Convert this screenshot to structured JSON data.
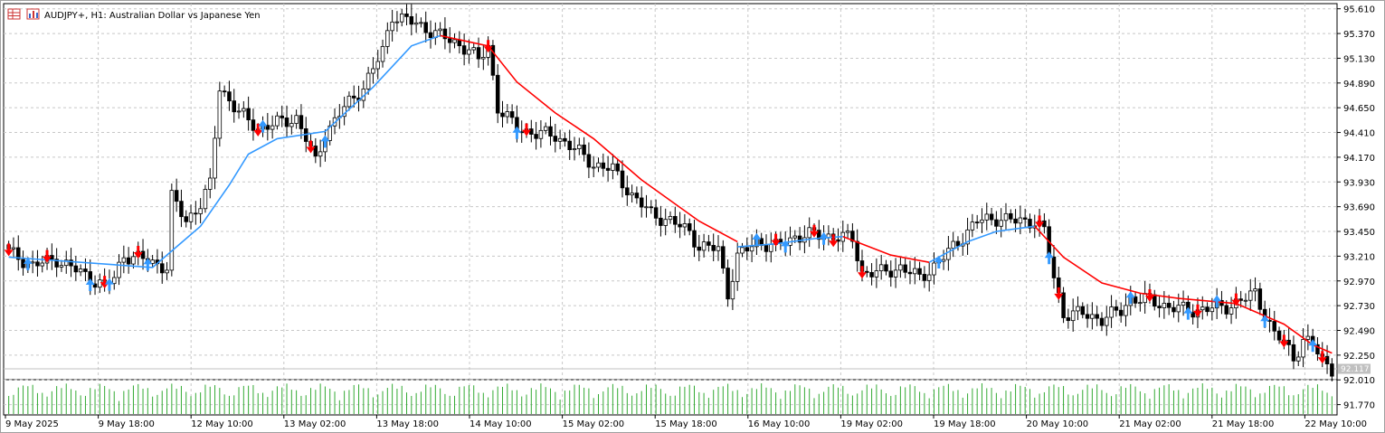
{
  "header": {
    "icons": [
      "chart-grid-icon",
      "bar-chart-icon"
    ],
    "symbol_line": "AUDJPY+, H1:  Australian Dollar vs Japanese Yen"
  },
  "colors": {
    "candle": "#000000",
    "ma_up": "#3399ff",
    "ma_down": "#ff0000",
    "arrow_up": "#3399ff",
    "arrow_down": "#ff0000",
    "volume": "#33aa33",
    "grid": "#c8c8c8",
    "price_tag": "#c0c0c0"
  },
  "chart_data": {
    "type": "candlestick",
    "symbol": "AUDJPY+",
    "timeframe": "H1",
    "description": "Australian Dollar vs Japanese Yen",
    "y_ticks": [
      "95.610",
      "95.370",
      "95.130",
      "94.890",
      "94.650",
      "94.410",
      "94.170",
      "93.930",
      "93.690",
      "93.450",
      "93.210",
      "92.970",
      "92.730",
      "92.490",
      "92.250",
      "92.010",
      "91.770"
    ],
    "ylim": [
      91.67,
      95.66
    ],
    "x_ticks": [
      "9 May 2025",
      "9 May 18:00",
      "12 May 10:00",
      "13 May 02:00",
      "13 May 18:00",
      "14 May 10:00",
      "15 May 02:00",
      "15 May 18:00",
      "16 May 10:00",
      "19 May 02:00",
      "19 May 18:00",
      "20 May 10:00",
      "21 May 02:00",
      "21 May 18:00",
      "22 May 10:00"
    ],
    "current_price": "92.117",
    "close_path": [
      [
        0,
        93.25
      ],
      [
        5,
        93.12
      ],
      [
        10,
        93.18
      ],
      [
        15,
        93.05
      ],
      [
        20,
        92.92
      ],
      [
        22,
        93.0
      ],
      [
        24,
        93.22
      ],
      [
        28,
        93.18
      ],
      [
        33,
        93.1
      ],
      [
        34,
        93.78
      ],
      [
        37,
        93.55
      ],
      [
        40,
        93.72
      ],
      [
        42,
        93.9
      ],
      [
        44,
        94.85
      ],
      [
        48,
        94.6
      ],
      [
        52,
        94.45
      ],
      [
        56,
        94.5
      ],
      [
        60,
        94.55
      ],
      [
        62,
        94.35
      ],
      [
        64,
        94.12
      ],
      [
        66,
        94.4
      ],
      [
        70,
        94.65
      ],
      [
        74,
        94.85
      ],
      [
        78,
        95.2
      ],
      [
        80,
        95.55
      ],
      [
        84,
        95.48
      ],
      [
        88,
        95.4
      ],
      [
        92,
        95.3
      ],
      [
        96,
        95.22
      ],
      [
        98,
        95.1
      ],
      [
        100,
        95.25
      ],
      [
        102,
        94.65
      ],
      [
        106,
        94.45
      ],
      [
        110,
        94.4
      ],
      [
        114,
        94.38
      ],
      [
        118,
        94.25
      ],
      [
        122,
        94.1
      ],
      [
        126,
        94.05
      ],
      [
        130,
        93.8
      ],
      [
        134,
        93.62
      ],
      [
        138,
        93.55
      ],
      [
        142,
        93.45
      ],
      [
        144,
        93.3
      ],
      [
        148,
        93.28
      ],
      [
        150,
        92.85
      ],
      [
        152,
        93.2
      ],
      [
        156,
        93.35
      ],
      [
        160,
        93.3
      ],
      [
        164,
        93.4
      ],
      [
        168,
        93.42
      ],
      [
        172,
        93.4
      ],
      [
        176,
        93.38
      ],
      [
        178,
        93.05
      ],
      [
        182,
        93.05
      ],
      [
        186,
        93.1
      ],
      [
        190,
        93.0
      ],
      [
        194,
        93.15
      ],
      [
        198,
        93.35
      ],
      [
        202,
        93.55
      ],
      [
        206,
        93.58
      ],
      [
        210,
        93.55
      ],
      [
        214,
        93.55
      ],
      [
        216,
        93.45
      ],
      [
        218,
        93.0
      ],
      [
        220,
        92.65
      ],
      [
        224,
        92.65
      ],
      [
        228,
        92.6
      ],
      [
        232,
        92.68
      ],
      [
        234,
        92.8
      ],
      [
        238,
        92.78
      ],
      [
        242,
        92.72
      ],
      [
        246,
        92.68
      ],
      [
        250,
        92.7
      ],
      [
        254,
        92.72
      ],
      [
        258,
        92.8
      ],
      [
        260,
        92.85
      ],
      [
        262,
        92.65
      ],
      [
        264,
        92.45
      ],
      [
        266,
        92.38
      ],
      [
        268,
        92.22
      ],
      [
        270,
        92.4
      ],
      [
        272,
        92.35
      ],
      [
        274,
        92.2
      ],
      [
        276,
        92.12
      ]
    ],
    "ma_segments": [
      {
        "trend": "up",
        "points": [
          [
            0,
            93.2
          ],
          [
            30,
            93.1
          ],
          [
            40,
            93.5
          ],
          [
            46,
            93.9
          ],
          [
            50,
            94.2
          ],
          [
            56,
            94.35
          ],
          [
            66,
            94.42
          ],
          [
            76,
            94.85
          ],
          [
            84,
            95.25
          ],
          [
            90,
            95.35
          ]
        ]
      },
      {
        "trend": "down",
        "points": [
          [
            90,
            95.35
          ],
          [
            100,
            95.25
          ],
          [
            106,
            94.9
          ],
          [
            114,
            94.6
          ],
          [
            122,
            94.35
          ],
          [
            132,
            93.95
          ],
          [
            144,
            93.55
          ],
          [
            152,
            93.35
          ]
        ]
      },
      {
        "trend": "up",
        "points": [
          [
            152,
            93.3
          ],
          [
            160,
            93.33
          ],
          [
            168,
            93.38
          ],
          [
            174,
            93.4
          ]
        ]
      },
      {
        "trend": "down",
        "points": [
          [
            174,
            93.4
          ],
          [
            184,
            93.22
          ],
          [
            192,
            93.15
          ]
        ]
      },
      {
        "trend": "up",
        "points": [
          [
            192,
            93.15
          ],
          [
            200,
            93.35
          ],
          [
            206,
            93.45
          ],
          [
            214,
            93.5
          ]
        ]
      },
      {
        "trend": "down",
        "points": [
          [
            214,
            93.5
          ],
          [
            220,
            93.2
          ],
          [
            228,
            92.95
          ],
          [
            236,
            92.85
          ],
          [
            244,
            92.8
          ],
          [
            256,
            92.75
          ],
          [
            266,
            92.55
          ],
          [
            272,
            92.35
          ],
          [
            276,
            92.27
          ]
        ]
      }
    ],
    "arrows": [
      {
        "i": 0,
        "dir": "down"
      },
      {
        "i": 4,
        "dir": "up"
      },
      {
        "i": 8,
        "dir": "down"
      },
      {
        "i": 17,
        "dir": "up"
      },
      {
        "i": 20,
        "dir": "down"
      },
      {
        "i": 21,
        "dir": "up"
      },
      {
        "i": 27,
        "dir": "down"
      },
      {
        "i": 29,
        "dir": "up"
      },
      {
        "i": 52,
        "dir": "down"
      },
      {
        "i": 53,
        "dir": "up"
      },
      {
        "i": 63,
        "dir": "down"
      },
      {
        "i": 66,
        "dir": "up"
      },
      {
        "i": 100,
        "dir": "down"
      },
      {
        "i": 106,
        "dir": "up"
      },
      {
        "i": 108,
        "dir": "down"
      },
      {
        "i": 156,
        "dir": "up"
      },
      {
        "i": 160,
        "dir": "down"
      },
      {
        "i": 162,
        "dir": "up"
      },
      {
        "i": 168,
        "dir": "down"
      },
      {
        "i": 170,
        "dir": "up"
      },
      {
        "i": 172,
        "dir": "down"
      },
      {
        "i": 178,
        "dir": "down"
      },
      {
        "i": 194,
        "dir": "up"
      },
      {
        "i": 215,
        "dir": "down"
      },
      {
        "i": 217,
        "dir": "up"
      },
      {
        "i": 219,
        "dir": "down"
      },
      {
        "i": 234,
        "dir": "up"
      },
      {
        "i": 238,
        "dir": "down"
      },
      {
        "i": 246,
        "dir": "up"
      },
      {
        "i": 248,
        "dir": "down"
      },
      {
        "i": 252,
        "dir": "up"
      },
      {
        "i": 256,
        "dir": "down"
      },
      {
        "i": 262,
        "dir": "up"
      },
      {
        "i": 266,
        "dir": "down"
      },
      {
        "i": 272,
        "dir": "up"
      },
      {
        "i": 274,
        "dir": "down"
      }
    ],
    "bar_count": 277
  }
}
